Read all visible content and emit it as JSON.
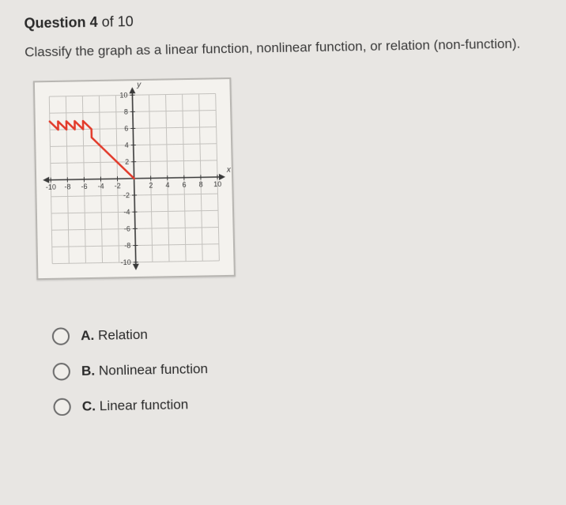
{
  "header": {
    "question_label": "Question",
    "current": "4",
    "of_label": "of",
    "total": "10"
  },
  "prompt": "Classify the graph as a linear function, nonlinear function, or relation (non-function).",
  "chart": {
    "type": "line",
    "xlim": [
      -10,
      10
    ],
    "ylim": [
      -10,
      10
    ],
    "tick_step": 2,
    "x_tick_labels": [
      "-10",
      "-8",
      "-6",
      "-4",
      "-2",
      "2",
      "4",
      "6",
      "8",
      "10"
    ],
    "y_tick_labels": [
      "10",
      "8",
      "6",
      "4",
      "2",
      "-2",
      "-4",
      "-6",
      "-8",
      "-10"
    ],
    "x_axis_label": "x",
    "y_axis_label": "y",
    "background_color": "#f4f2ee",
    "grid_color": "#c4c2be",
    "axis_color": "#3a3a3a",
    "curve_color": "#e23a2a",
    "curve_width": 2.5,
    "tick_fontsize": 9,
    "curve_points": [
      [
        -10,
        7
      ],
      [
        -9,
        6
      ],
      [
        -9,
        7
      ],
      [
        -8,
        6
      ],
      [
        -8,
        7
      ],
      [
        -7,
        6
      ],
      [
        -7,
        7
      ],
      [
        -6,
        6
      ],
      [
        -6,
        7
      ],
      [
        -5,
        6
      ],
      [
        -5,
        5
      ],
      [
        -4,
        4
      ],
      [
        -3,
        3
      ],
      [
        -2,
        2
      ],
      [
        -1,
        1
      ],
      [
        0,
        0
      ]
    ]
  },
  "options": [
    {
      "letter": "A.",
      "text": "Relation"
    },
    {
      "letter": "B.",
      "text": "Nonlinear function"
    },
    {
      "letter": "C.",
      "text": "Linear function"
    }
  ]
}
